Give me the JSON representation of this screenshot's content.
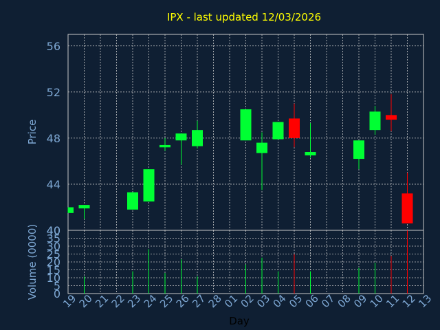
{
  "chart_data": {
    "type": "candlestick",
    "title": "IPX - last updated 12/03/2026",
    "xlabel": "Day",
    "ylabel": "Price",
    "volume_label": "Volume (0000)",
    "ylim": [
      40,
      57
    ],
    "y_ticks": [
      "40",
      "44",
      "48",
      "52",
      "56"
    ],
    "volume_ylim": [
      0,
      37
    ],
    "volume_ticks": [
      "0",
      "5",
      "10",
      "15",
      "20",
      "25",
      "30",
      "35",
      "40"
    ],
    "x_ticks": [
      "19",
      "20",
      "21",
      "22",
      "23",
      "24",
      "25",
      "26",
      "27",
      "28",
      "01",
      "02",
      "03",
      "04",
      "05",
      "06",
      "07",
      "08",
      "09",
      "10",
      "11",
      "12",
      "13"
    ],
    "grid": true,
    "candles": [
      {
        "day": "19",
        "open": 41.5,
        "close": 42.0,
        "high": 42.0,
        "low": 41.5,
        "volume": 0
      },
      {
        "day": "20",
        "open": 41.9,
        "close": 42.2,
        "high": 42.2,
        "low": 41.0,
        "volume": 10
      },
      {
        "day": "23",
        "open": 41.8,
        "close": 43.3,
        "high": 43.3,
        "low": 41.8,
        "volume": 13
      },
      {
        "day": "24",
        "open": 42.5,
        "close": 45.3,
        "high": 45.3,
        "low": 42.5,
        "volume": 26
      },
      {
        "day": "25",
        "open": 47.2,
        "close": 47.4,
        "high": 48.0,
        "low": 46.9,
        "volume": 12
      },
      {
        "day": "26",
        "open": 47.8,
        "close": 48.4,
        "high": 48.4,
        "low": 45.7,
        "volume": 20
      },
      {
        "day": "27",
        "open": 47.3,
        "close": 48.7,
        "high": 49.5,
        "low": 47.1,
        "volume": 10
      },
      {
        "day": "02",
        "open": 47.8,
        "close": 50.5,
        "high": 50.5,
        "low": 47.8,
        "volume": 17
      },
      {
        "day": "03",
        "open": 46.7,
        "close": 47.6,
        "high": 48.5,
        "low": 43.5,
        "volume": 21
      },
      {
        "day": "04",
        "open": 47.9,
        "close": 49.4,
        "high": 49.4,
        "low": 47.9,
        "volume": 13
      },
      {
        "day": "05",
        "open": 49.7,
        "close": 48.0,
        "high": 51.0,
        "low": 47.2,
        "volume": 23
      },
      {
        "day": "06",
        "open": 46.5,
        "close": 46.8,
        "high": 49.3,
        "low": 46.3,
        "volume": 13
      },
      {
        "day": "09",
        "open": 46.2,
        "close": 47.8,
        "high": 47.8,
        "low": 45.3,
        "volume": 15
      },
      {
        "day": "10",
        "open": 48.7,
        "close": 50.3,
        "high": 50.8,
        "low": 48.3,
        "volume": 18
      },
      {
        "day": "11",
        "open": 50.0,
        "close": 49.6,
        "high": 51.8,
        "low": 48.6,
        "volume": 22
      },
      {
        "day": "12",
        "open": 43.2,
        "close": 40.6,
        "high": 45.0,
        "low": 40.6,
        "volume": 37
      }
    ],
    "colors": {
      "background": "#0f1f33",
      "plot": "#0f1f33",
      "frame": "#c8c8c8",
      "grid": "#c8c8c8",
      "up": "#00ff33",
      "down": "#ff0000",
      "title": "#ffff00",
      "axis_label": "#7ea8d4",
      "tick_label": "#7ea8d4",
      "day_label": "#000000"
    }
  }
}
